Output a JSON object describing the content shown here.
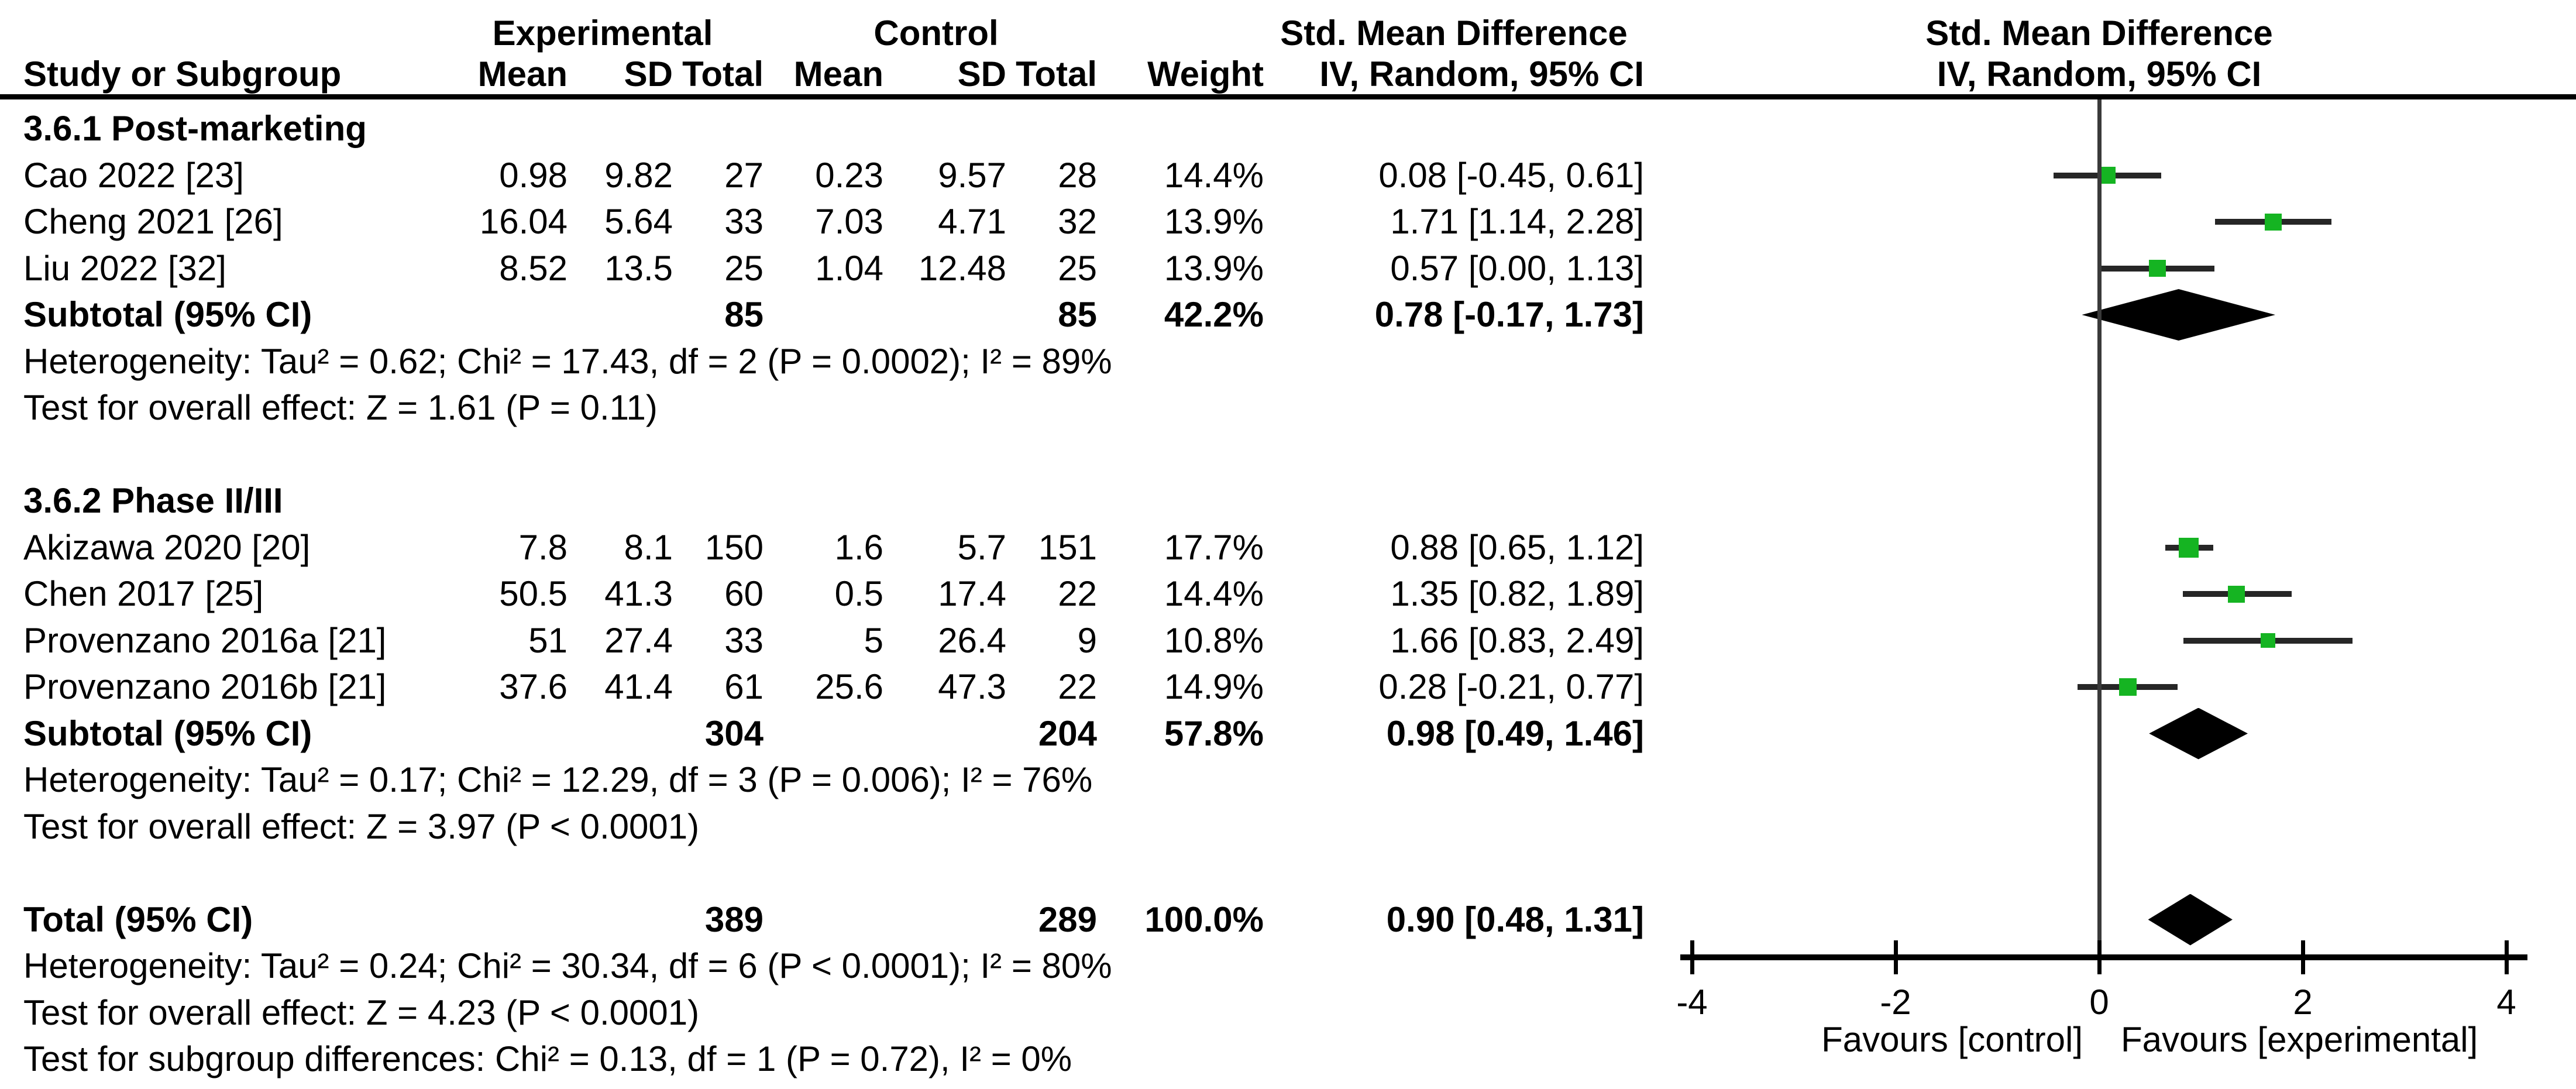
{
  "colors": {
    "marker_green": "#15b422",
    "ci_line": "#262626",
    "diamond": "#000000",
    "axis": "#000000",
    "text": "#000000",
    "background": "#ffffff"
  },
  "header": {
    "group_experimental": "Experimental",
    "group_control": "Control",
    "group_smd_left": "Std. Mean Difference",
    "group_smd_right": "Std. Mean Difference",
    "col_study": "Study or Subgroup",
    "col_mean_e": "Mean",
    "col_sd_e": "SD",
    "col_total_e": "Total",
    "col_mean_c": "Mean",
    "col_sd_c": "SD",
    "col_total_c": "Total",
    "col_weight": "Weight",
    "col_ci": "IV, Random, 95% CI",
    "plot_ci": "IV, Random, 95% CI"
  },
  "chart_data": {
    "type": "forest",
    "effect_measure": "Std. Mean Difference",
    "method": "IV, Random, 95% CI",
    "x_axis": {
      "ticks": [
        -4,
        -2,
        0,
        2,
        4
      ],
      "tick_labels": [
        "-4",
        "-2",
        "0",
        "2",
        "4"
      ],
      "range": [
        -4,
        4
      ],
      "left_label": "Favours [control]",
      "right_label": "Favours [experimental]"
    },
    "rows": [
      {
        "kind": "subgroup",
        "study": "3.6.1 Post-marketing"
      },
      {
        "kind": "study",
        "study": "Cao 2022 [23]",
        "mean_e": "0.98",
        "sd_e": "9.82",
        "total_e": "27",
        "mean_c": "0.23",
        "sd_c": "9.57",
        "total_c": "28",
        "weight": "14.4%",
        "ci_text": "0.08 [-0.45, 0.61]",
        "est": 0.08,
        "lo": -0.45,
        "hi": 0.61,
        "w": 14.4
      },
      {
        "kind": "study",
        "study": "Cheng 2021 [26]",
        "mean_e": "16.04",
        "sd_e": "5.64",
        "total_e": "33",
        "mean_c": "7.03",
        "sd_c": "4.71",
        "total_c": "32",
        "weight": "13.9%",
        "ci_text": "1.71 [1.14, 2.28]",
        "est": 1.71,
        "lo": 1.14,
        "hi": 2.28,
        "w": 13.9
      },
      {
        "kind": "study",
        "study": "Liu 2022 [32]",
        "mean_e": "8.52",
        "sd_e": "13.5",
        "total_e": "25",
        "mean_c": "1.04",
        "sd_c": "12.48",
        "total_c": "25",
        "weight": "13.9%",
        "ci_text": "0.57 [0.00, 1.13]",
        "est": 0.57,
        "lo": 0.0,
        "hi": 1.13,
        "w": 13.9
      },
      {
        "kind": "subtotal",
        "study": "Subtotal (95% CI)",
        "total_e": "85",
        "total_c": "85",
        "weight": "42.2%",
        "ci_text": "0.78 [-0.17, 1.73]",
        "est": 0.78,
        "lo": -0.17,
        "hi": 1.73
      },
      {
        "kind": "note",
        "study": "Heterogeneity: Tau² = 0.62; Chi² = 17.43, df = 2 (P = 0.0002); I² = 89%"
      },
      {
        "kind": "note",
        "study": "Test for overall effect: Z = 1.61 (P = 0.11)"
      },
      {
        "kind": "blank",
        "study": ""
      },
      {
        "kind": "subgroup",
        "study": "3.6.2 Phase II/III"
      },
      {
        "kind": "study",
        "study": "Akizawa 2020 [20]",
        "mean_e": "7.8",
        "sd_e": "8.1",
        "total_e": "150",
        "mean_c": "1.6",
        "sd_c": "5.7",
        "total_c": "151",
        "weight": "17.7%",
        "ci_text": "0.88 [0.65, 1.12]",
        "est": 0.88,
        "lo": 0.65,
        "hi": 1.12,
        "w": 17.7
      },
      {
        "kind": "study",
        "study": "Chen 2017 [25]",
        "mean_e": "50.5",
        "sd_e": "41.3",
        "total_e": "60",
        "mean_c": "0.5",
        "sd_c": "17.4",
        "total_c": "22",
        "weight": "14.4%",
        "ci_text": "1.35 [0.82, 1.89]",
        "est": 1.35,
        "lo": 0.82,
        "hi": 1.89,
        "w": 14.4
      },
      {
        "kind": "study",
        "study": "Provenzano 2016a [21]",
        "mean_e": "51",
        "sd_e": "27.4",
        "total_e": "33",
        "mean_c": "5",
        "sd_c": "26.4",
        "total_c": "9",
        "weight": "10.8%",
        "ci_text": "1.66 [0.83, 2.49]",
        "est": 1.66,
        "lo": 0.83,
        "hi": 2.49,
        "w": 10.8
      },
      {
        "kind": "study",
        "study": "Provenzano 2016b [21]",
        "mean_e": "37.6",
        "sd_e": "41.4",
        "total_e": "61",
        "mean_c": "25.6",
        "sd_c": "47.3",
        "total_c": "22",
        "weight": "14.9%",
        "ci_text": "0.28 [-0.21, 0.77]",
        "est": 0.28,
        "lo": -0.21,
        "hi": 0.77,
        "w": 14.9
      },
      {
        "kind": "subtotal",
        "study": "Subtotal (95% CI)",
        "total_e": "304",
        "total_c": "204",
        "weight": "57.8%",
        "ci_text": "0.98 [0.49, 1.46]",
        "est": 0.98,
        "lo": 0.49,
        "hi": 1.46
      },
      {
        "kind": "note",
        "study": "Heterogeneity: Tau² = 0.17; Chi² = 12.29, df = 3 (P = 0.006); I² = 76%"
      },
      {
        "kind": "note",
        "study": "Test for overall effect: Z = 3.97 (P < 0.0001)"
      },
      {
        "kind": "blank",
        "study": ""
      },
      {
        "kind": "total",
        "study": "Total (95% CI)",
        "total_e": "389",
        "total_c": "289",
        "weight": "100.0%",
        "ci_text": "0.90 [0.48, 1.31]",
        "est": 0.9,
        "lo": 0.48,
        "hi": 1.31
      },
      {
        "kind": "note",
        "study": "Heterogeneity: Tau² = 0.24; Chi² = 30.34, df = 6 (P < 0.0001); I² = 80%"
      },
      {
        "kind": "note",
        "study": "Test for overall effect: Z = 4.23 (P < 0.0001)"
      },
      {
        "kind": "note",
        "study": "Test for subgroup differences: Chi² = 0.13, df = 1 (P = 0.72), I² = 0%"
      }
    ]
  }
}
